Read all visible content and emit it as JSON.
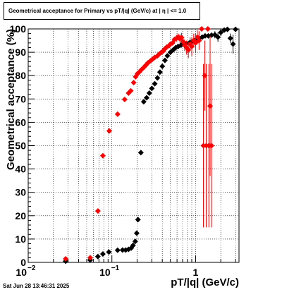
{
  "chart_data": {
    "type": "scatter",
    "title": "Geometrical acceptance for Primary vs pT/|q| (GeV/c) at |  η  | <= 1.0",
    "xlabel": "pT/|q| (GeV/c)",
    "ylabel": "Geometrical acceptance (%)",
    "x_scale": "log",
    "xlim": [
      0.01,
      3.3
    ],
    "ylim": [
      0,
      100
    ],
    "grid": true,
    "x_tick_labels": [
      {
        "value": 0.01,
        "base": "10",
        "exp": "−2"
      },
      {
        "value": 0.1,
        "base": "10",
        "exp": "−1"
      },
      {
        "value": 1,
        "base": "1",
        "exp": ""
      }
    ],
    "y_ticks": [
      0,
      10,
      20,
      30,
      40,
      50,
      60,
      70,
      80,
      90,
      100
    ],
    "series": [
      {
        "color": "#000000",
        "marker": "diamond",
        "points": [
          {
            "x": 0.028,
            "y": 0.5,
            "err": 0
          },
          {
            "x": 0.055,
            "y": 1.0,
            "err": 0
          },
          {
            "x": 0.068,
            "y": 2.5,
            "err": 0
          },
          {
            "x": 0.078,
            "y": 3.6,
            "err": 0
          },
          {
            "x": 0.092,
            "y": 4.4,
            "err": 0
          },
          {
            "x": 0.117,
            "y": 5.2,
            "err": 0
          },
          {
            "x": 0.134,
            "y": 5.3,
            "err": 0
          },
          {
            "x": 0.146,
            "y": 5.3,
            "err": 0
          },
          {
            "x": 0.158,
            "y": 5.6,
            "err": 0
          },
          {
            "x": 0.17,
            "y": 6.1,
            "err": 0
          },
          {
            "x": 0.179,
            "y": 7.3,
            "err": 0
          },
          {
            "x": 0.19,
            "y": 9.0,
            "err": 0
          },
          {
            "x": 0.198,
            "y": 12.5,
            "err": 0
          },
          {
            "x": 0.205,
            "y": 18.3,
            "err": 0
          },
          {
            "x": 0.222,
            "y": 47,
            "err": 0
          },
          {
            "x": 0.24,
            "y": 68.8,
            "err": 0
          },
          {
            "x": 0.26,
            "y": 70.5,
            "err": 0
          },
          {
            "x": 0.28,
            "y": 72.5,
            "err": 0
          },
          {
            "x": 0.3,
            "y": 74.5,
            "err": 0
          },
          {
            "x": 0.325,
            "y": 76.5,
            "err": 0
          },
          {
            "x": 0.35,
            "y": 79.0,
            "err": 0
          },
          {
            "x": 0.375,
            "y": 81.5,
            "err": 0
          },
          {
            "x": 0.4,
            "y": 84.0,
            "err": 0
          },
          {
            "x": 0.43,
            "y": 86.5,
            "err": 0
          },
          {
            "x": 0.46,
            "y": 88.5,
            "err": 0
          },
          {
            "x": 0.5,
            "y": 90.0,
            "err": 0
          },
          {
            "x": 0.54,
            "y": 91.0,
            "err": 0
          },
          {
            "x": 0.58,
            "y": 92.0,
            "err": 0
          },
          {
            "x": 0.62,
            "y": 92.5,
            "err": 0
          },
          {
            "x": 0.67,
            "y": 93.0,
            "err": 0
          },
          {
            "x": 0.72,
            "y": 93.5,
            "err": 0
          },
          {
            "x": 0.78,
            "y": 93.8,
            "err": 0
          },
          {
            "x": 0.84,
            "y": 94.0,
            "err": 0
          },
          {
            "x": 0.9,
            "y": 94.5,
            "err": 0
          },
          {
            "x": 0.96,
            "y": 95.0,
            "err": 0
          },
          {
            "x": 1.03,
            "y": 95.5,
            "err": 0
          },
          {
            "x": 1.1,
            "y": 96.0,
            "err": 0
          },
          {
            "x": 1.2,
            "y": 96.5,
            "err": 0
          },
          {
            "x": 1.3,
            "y": 97.0,
            "err": 0
          },
          {
            "x": 1.42,
            "y": 97.0,
            "err": 0
          },
          {
            "x": 1.55,
            "y": 97.3,
            "err": 0
          },
          {
            "x": 1.7,
            "y": 97.5,
            "err": 1.5
          },
          {
            "x": 1.85,
            "y": 96.5,
            "err": 2
          },
          {
            "x": 2.0,
            "y": 98.5,
            "err": 1.5
          },
          {
            "x": 2.2,
            "y": 99.5,
            "err": 1
          },
          {
            "x": 2.4,
            "y": 99.8,
            "err": 1
          },
          {
            "x": 2.6,
            "y": 96.0,
            "err": 2
          },
          {
            "x": 2.8,
            "y": 93.5,
            "err": 4
          },
          {
            "x": 3.0,
            "y": 99.8,
            "err": 0
          }
        ]
      },
      {
        "color": "#ff0000",
        "marker": "diamond",
        "points": [
          {
            "x": 0.028,
            "y": 1.5,
            "err": 0
          },
          {
            "x": 0.055,
            "y": 2.0,
            "err": 0
          },
          {
            "x": 0.068,
            "y": 22,
            "err": 0
          },
          {
            "x": 0.078,
            "y": 45.7,
            "err": 0
          },
          {
            "x": 0.093,
            "y": 56.3,
            "err": 0
          },
          {
            "x": 0.117,
            "y": 63.5,
            "err": 0
          },
          {
            "x": 0.142,
            "y": 69.8,
            "err": 0
          },
          {
            "x": 0.158,
            "y": 72.5,
            "err": 0
          },
          {
            "x": 0.168,
            "y": 73.5,
            "err": 0
          },
          {
            "x": 0.182,
            "y": 77.0,
            "err": 0
          },
          {
            "x": 0.192,
            "y": 79.5,
            "err": 0
          },
          {
            "x": 0.202,
            "y": 80.8,
            "err": 0
          },
          {
            "x": 0.212,
            "y": 81.5,
            "err": 0
          },
          {
            "x": 0.225,
            "y": 82.5,
            "err": 0
          },
          {
            "x": 0.24,
            "y": 83.5,
            "err": 0
          },
          {
            "x": 0.255,
            "y": 84.5,
            "err": 0
          },
          {
            "x": 0.27,
            "y": 85.5,
            "err": 0
          },
          {
            "x": 0.288,
            "y": 86.3,
            "err": 0
          },
          {
            "x": 0.305,
            "y": 87.0,
            "err": 0
          },
          {
            "x": 0.325,
            "y": 87.8,
            "err": 0
          },
          {
            "x": 0.35,
            "y": 88.5,
            "err": 0
          },
          {
            "x": 0.37,
            "y": 89.3,
            "err": 0
          },
          {
            "x": 0.39,
            "y": 90.0,
            "err": 0
          },
          {
            "x": 0.41,
            "y": 90.5,
            "err": 0
          },
          {
            "x": 0.43,
            "y": 91.5,
            "err": 0
          },
          {
            "x": 0.45,
            "y": 92.2,
            "err": 0
          },
          {
            "x": 0.48,
            "y": 92.8,
            "err": 0
          },
          {
            "x": 0.5,
            "y": 93.5,
            "err": 1
          },
          {
            "x": 0.53,
            "y": 94.0,
            "err": 1
          },
          {
            "x": 0.56,
            "y": 95.5,
            "err": 1
          },
          {
            "x": 0.59,
            "y": 96.0,
            "err": 1.5
          },
          {
            "x": 0.62,
            "y": 96.5,
            "err": 1.5
          },
          {
            "x": 0.65,
            "y": 95.8,
            "err": 2
          },
          {
            "x": 0.68,
            "y": 96.3,
            "err": 2
          },
          {
            "x": 0.71,
            "y": 94.5,
            "err": 2
          },
          {
            "x": 0.74,
            "y": 93.0,
            "err": 2.5
          },
          {
            "x": 0.78,
            "y": 92.0,
            "err": 3
          },
          {
            "x": 0.82,
            "y": 91.0,
            "err": 3.5
          },
          {
            "x": 0.86,
            "y": 93.5,
            "err": 3
          },
          {
            "x": 0.9,
            "y": 92.5,
            "err": 4
          },
          {
            "x": 0.95,
            "y": 95.0,
            "err": 3
          },
          {
            "x": 1.0,
            "y": 94.0,
            "err": 4
          },
          {
            "x": 1.05,
            "y": 96.5,
            "err": 3
          },
          {
            "x": 1.1,
            "y": 95.0,
            "err": 4
          },
          {
            "x": 1.18,
            "y": 100,
            "err": 0
          },
          {
            "x": 1.24,
            "y": 50,
            "err": 35
          },
          {
            "x": 1.29,
            "y": 80,
            "err": 15
          },
          {
            "x": 1.34,
            "y": 50,
            "err": 35
          },
          {
            "x": 1.4,
            "y": 100,
            "err": 0
          },
          {
            "x": 1.44,
            "y": 50,
            "err": 35
          },
          {
            "x": 1.49,
            "y": 67,
            "err": 30
          },
          {
            "x": 1.55,
            "y": 50,
            "err": 35
          }
        ]
      }
    ]
  },
  "footer": {
    "timestamp": "Sat Jun 28 13:46:31 2025"
  }
}
